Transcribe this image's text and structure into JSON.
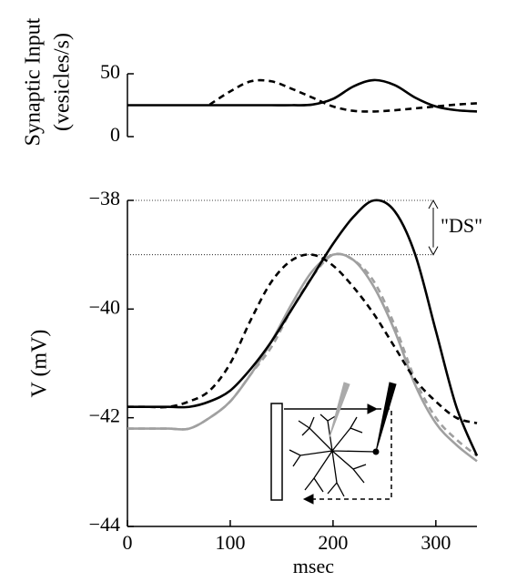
{
  "chart_data": [
    {
      "type": "line",
      "ylabel": [
        "Synaptic Input",
        "(vesicles/s)"
      ],
      "x": [
        0,
        20,
        40,
        60,
        80,
        100,
        120,
        140,
        160,
        180,
        200,
        220,
        240,
        260,
        280,
        300,
        320,
        340
      ],
      "xlim": [
        0,
        340
      ],
      "ylim": [
        0,
        50
      ],
      "yticks": [
        0,
        50
      ],
      "series": [
        {
          "color": "#000000",
          "dash": false,
          "values": [
            25,
            25,
            25,
            25,
            25,
            25,
            25,
            25,
            25,
            25.5,
            30,
            40,
            45,
            41,
            31,
            24,
            21,
            20
          ]
        },
        {
          "color": "#000000",
          "dash": true,
          "values": [
            null,
            null,
            null,
            null,
            25.5,
            36,
            44,
            44,
            38,
            31,
            24,
            20.5,
            20,
            21,
            22.5,
            24,
            25.5,
            26.5
          ]
        }
      ]
    },
    {
      "type": "line",
      "ylabel": "V (mV)",
      "xlabel": "msec",
      "x": [
        0,
        20,
        40,
        60,
        80,
        100,
        120,
        140,
        160,
        180,
        200,
        220,
        240,
        260,
        280,
        300,
        320,
        340
      ],
      "xlim": [
        0,
        340
      ],
      "xticks": [
        0,
        100,
        200,
        300
      ],
      "ylim": [
        -44,
        -38
      ],
      "yticks": [
        {
          "value": -44,
          "label": "−44"
        },
        {
          "value": -42,
          "label": "−42"
        },
        {
          "value": -40,
          "label": "−40"
        },
        {
          "value": -38,
          "label": "−38"
        }
      ],
      "annotation": {
        "text": "\"DS\"",
        "y": [
          -38,
          -39
        ]
      },
      "series": [
        {
          "color": "#000000",
          "dash": false,
          "values": [
            -41.8,
            -41.8,
            -41.8,
            -41.8,
            -41.7,
            -41.5,
            -41.1,
            -40.6,
            -40.0,
            -39.4,
            -38.8,
            -38.3,
            -38.0,
            -38.2,
            -39.0,
            -40.4,
            -41.8,
            -42.7
          ]
        },
        {
          "color": "#000000",
          "dash": true,
          "values": [
            -41.8,
            -41.8,
            -41.8,
            -41.7,
            -41.5,
            -41.0,
            -40.2,
            -39.5,
            -39.1,
            -39.0,
            -39.2,
            -39.6,
            -40.1,
            -40.7,
            -41.3,
            -41.7,
            -42.0,
            -42.1
          ]
        },
        {
          "color": "#a0a0a0",
          "dash": false,
          "values": [
            -42.2,
            -42.2,
            -42.2,
            -42.2,
            -42.0,
            -41.7,
            -41.2,
            -40.6,
            -39.9,
            -39.3,
            -39.0,
            -39.1,
            -39.6,
            -40.4,
            -41.4,
            -42.1,
            -42.5,
            -42.8
          ]
        },
        {
          "color": "#a0a0a0",
          "dash": true,
          "values": [
            -42.2,
            -42.2,
            -42.2,
            -42.2,
            -42.0,
            -41.7,
            -41.2,
            -40.7,
            -40.0,
            -39.4,
            -39.0,
            -39.1,
            -39.5,
            -40.3,
            -41.3,
            -42.0,
            -42.4,
            -42.7
          ]
        }
      ]
    }
  ]
}
